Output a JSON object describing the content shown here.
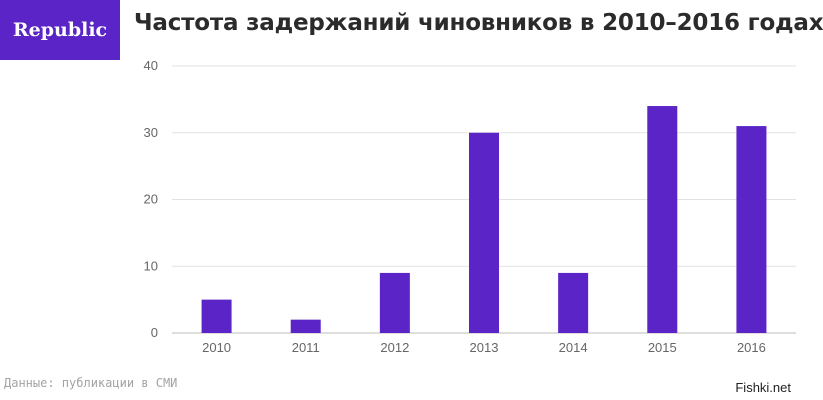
{
  "brand": {
    "logo_text": "Republic",
    "color": "#5b24c7"
  },
  "chart_data": {
    "type": "bar",
    "title": "Частота задержаний чиновников в 2010–2016 годах",
    "categories": [
      "2010",
      "2011",
      "2012",
      "2013",
      "2014",
      "2015",
      "2016"
    ],
    "values": [
      5,
      2,
      9,
      30,
      9,
      34,
      31
    ],
    "ylim": [
      0,
      40
    ],
    "yticks": [
      "0",
      "10",
      "20",
      "30",
      "40"
    ],
    "xlabel": "",
    "ylabel": "",
    "grid": true,
    "bar_color": "#5b24c7"
  },
  "source": "Данные: публикации в СМИ",
  "watermark": "Fishki.net"
}
